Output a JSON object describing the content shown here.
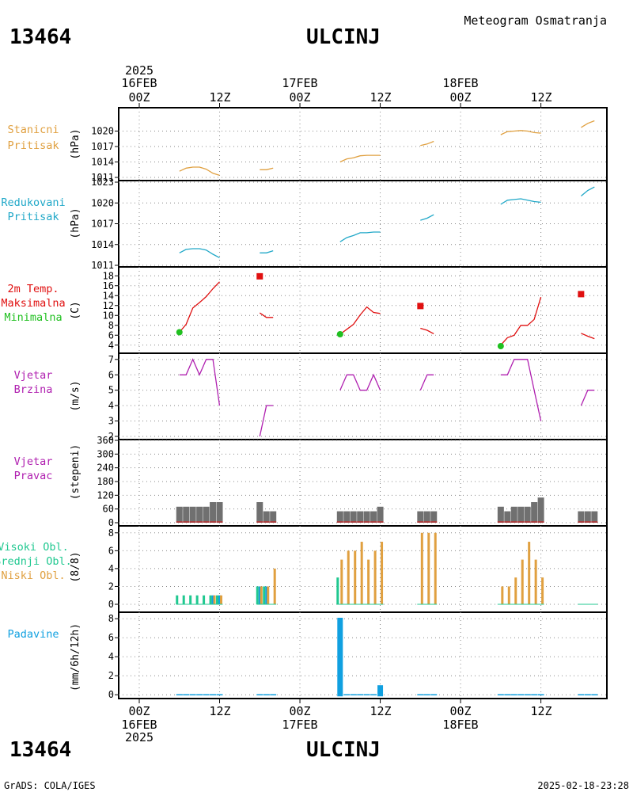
{
  "header": {
    "station_id": "13464",
    "station_name": "ULCINJ",
    "subtitle": "Meteogram Osmatranja"
  },
  "time_axis": {
    "year": "2025",
    "dates": [
      "16FEB",
      "17FEB",
      "18FEB"
    ],
    "hour_labels": [
      "00Z",
      "12Z",
      "00Z",
      "12Z",
      "00Z",
      "12Z"
    ]
  },
  "footer": {
    "left": "GrADS: COLA/IGES",
    "right": "2025-02-18-23:28"
  },
  "colors": {
    "orange": "#e0a040",
    "cyan": "#20a8c8",
    "red": "#e01010",
    "green": "#20c020",
    "magenta": "#b020b0",
    "gray": "#707070",
    "teal": "#20c890",
    "blue": "#10a0e0"
  },
  "chart_data": [
    {
      "type": "line",
      "panel": "stanicni",
      "labels": [
        "Stanicni",
        "Pritisak"
      ],
      "ylabel": "(hPa)",
      "ylim": [
        1011,
        1023
      ],
      "yticks": [
        1011,
        1014,
        1017,
        1020
      ],
      "x_unit": "hours since 2025-02-16 00Z",
      "segments": [
        {
          "x": [
            6,
            7,
            8,
            9,
            10,
            11,
            12
          ],
          "y": [
            1012.2,
            1012.8,
            1013.0,
            1013.0,
            1012.6,
            1011.8,
            1011.4
          ]
        },
        {
          "x": [
            18,
            19,
            20
          ],
          "y": [
            1012.5,
            1012.5,
            1012.8
          ]
        },
        {
          "x": [
            30,
            31,
            32,
            33,
            34,
            35,
            36
          ],
          "y": [
            1014.0,
            1014.6,
            1014.8,
            1015.2,
            1015.3,
            1015.3,
            1015.3
          ]
        },
        {
          "x": [
            42,
            43,
            44
          ],
          "y": [
            1017.2,
            1017.5,
            1018.0
          ]
        },
        {
          "x": [
            54,
            55,
            56,
            57,
            58,
            59,
            60
          ],
          "y": [
            1019.3,
            1019.9,
            1020.0,
            1020.1,
            1020.0,
            1019.7,
            1019.6
          ]
        },
        {
          "x": [
            66,
            67,
            68
          ],
          "y": [
            1020.7,
            1021.5,
            1022.0
          ]
        }
      ]
    },
    {
      "type": "line",
      "panel": "redukovani",
      "labels": [
        "Redukovani",
        "Pritisak"
      ],
      "ylabel": "(hPa)",
      "ylim": [
        1011,
        1023
      ],
      "yticks": [
        1011,
        1014,
        1017,
        1020,
        1023
      ],
      "x_unit": "hours since 2025-02-16 00Z",
      "segments": [
        {
          "x": [
            6,
            7,
            8,
            9,
            10,
            11,
            12
          ],
          "y": [
            1012.8,
            1013.3,
            1013.4,
            1013.4,
            1013.2,
            1012.6,
            1012.1
          ]
        },
        {
          "x": [
            18,
            19,
            20
          ],
          "y": [
            1012.8,
            1012.8,
            1013.1
          ]
        },
        {
          "x": [
            30,
            31,
            32,
            33,
            34,
            35,
            36
          ],
          "y": [
            1014.4,
            1015.0,
            1015.3,
            1015.7,
            1015.7,
            1015.8,
            1015.8
          ]
        },
        {
          "x": [
            42,
            43,
            44
          ],
          "y": [
            1017.5,
            1017.8,
            1018.3
          ]
        },
        {
          "x": [
            54,
            55,
            56,
            57,
            58,
            59,
            60
          ],
          "y": [
            1019.8,
            1020.4,
            1020.5,
            1020.6,
            1020.4,
            1020.2,
            1020.1
          ]
        },
        {
          "x": [
            66,
            67,
            68
          ],
          "y": [
            1021.0,
            1021.8,
            1022.3
          ]
        }
      ]
    },
    {
      "type": "line",
      "panel": "temperatura",
      "labels": [
        "2m Temp.",
        "Maksimalna",
        "Minimalna"
      ],
      "ylabel": "(C)",
      "ylim": [
        3,
        19
      ],
      "yticks": [
        4,
        6,
        8,
        10,
        12,
        14,
        16,
        18
      ],
      "x_unit": "hours since 2025-02-16 00Z",
      "segments": [
        {
          "x": [
            6,
            7,
            8,
            9,
            10,
            11,
            12
          ],
          "y": [
            6.6,
            8.2,
            11.5,
            12.6,
            13.8,
            15.4,
            16.8
          ]
        },
        {
          "x": [
            18,
            19,
            20
          ],
          "y": [
            10.5,
            9.6,
            9.6
          ]
        },
        {
          "x": [
            30,
            31,
            32,
            33,
            34,
            35,
            36
          ],
          "y": [
            6.2,
            7.2,
            8.2,
            10.1,
            11.7,
            10.6,
            10.4
          ]
        },
        {
          "x": [
            42,
            43,
            44
          ],
          "y": [
            7.4,
            7.0,
            6.3
          ]
        },
        {
          "x": [
            54,
            55,
            56,
            57,
            58,
            59,
            60
          ],
          "y": [
            4.0,
            5.5,
            6.0,
            8.0,
            8.0,
            9.2,
            13.7
          ]
        },
        {
          "x": [
            66,
            67,
            68
          ],
          "y": [
            6.4,
            5.8,
            5.3
          ]
        }
      ],
      "maximum": {
        "x": [
          18,
          42,
          66
        ],
        "y": [
          17.9,
          11.9,
          14.3
        ]
      },
      "minimum": {
        "x": [
          6,
          30,
          54
        ],
        "y": [
          6.6,
          6.2,
          3.8
        ]
      }
    },
    {
      "type": "line",
      "panel": "vjetar_brzina",
      "labels": [
        "Vjetar",
        "Brzina"
      ],
      "ylabel": "(m/s)",
      "ylim": [
        2,
        7.3
      ],
      "yticks": [
        2,
        3,
        4,
        5,
        6,
        7
      ],
      "x_unit": "hours since 2025-02-16 00Z",
      "segments": [
        {
          "x": [
            6,
            7,
            8,
            9,
            10,
            11,
            12
          ],
          "y": [
            6,
            6,
            7,
            6,
            7,
            7,
            4
          ]
        },
        {
          "x": [
            18,
            19,
            20
          ],
          "y": [
            2,
            4,
            4
          ]
        },
        {
          "x": [
            30,
            31,
            32,
            33,
            34,
            35,
            36
          ],
          "y": [
            5,
            6,
            6,
            5,
            5,
            6,
            5
          ]
        },
        {
          "x": [
            42,
            43,
            44
          ],
          "y": [
            5,
            6,
            6
          ]
        },
        {
          "x": [
            54,
            55,
            56,
            57,
            58,
            59,
            60
          ],
          "y": [
            6,
            6,
            7,
            7,
            7,
            5,
            3
          ]
        },
        {
          "x": [
            66,
            67,
            68
          ],
          "y": [
            4,
            5,
            5
          ]
        }
      ]
    },
    {
      "type": "bar",
      "panel": "vjetar_pravac",
      "labels": [
        "Vjetar",
        "Pravac"
      ],
      "ylabel": "(stepeni)",
      "ylim": [
        0,
        360
      ],
      "yticks": [
        0,
        60,
        120,
        180,
        240,
        300,
        360
      ],
      "x_unit": "hours since 2025-02-16 00Z",
      "x": [
        6,
        7,
        8,
        9,
        10,
        11,
        12,
        18,
        19,
        20,
        30,
        31,
        32,
        33,
        34,
        35,
        36,
        42,
        43,
        44,
        54,
        55,
        56,
        57,
        58,
        59,
        60,
        66,
        67,
        68
      ],
      "values": [
        70,
        70,
        70,
        70,
        70,
        90,
        90,
        90,
        50,
        50,
        50,
        50,
        50,
        50,
        50,
        50,
        70,
        50,
        50,
        50,
        70,
        50,
        70,
        70,
        70,
        90,
        110,
        50,
        50,
        50
      ]
    },
    {
      "type": "bar",
      "panel": "oblacnost",
      "labels": [
        "Visoki Obl.",
        "Srednji Obl.",
        "Niski Obl."
      ],
      "ylabel": "(8/8)",
      "ylim": [
        0,
        8.6
      ],
      "yticks": [
        0,
        2,
        4,
        6,
        8
      ],
      "x_unit": "hours since 2025-02-16 00Z",
      "series": [
        {
          "name": "Visoki Obl.",
          "x": [
            6,
            7,
            8,
            9,
            10,
            11,
            12,
            18,
            19,
            20,
            30
          ],
          "values": [
            1,
            1,
            1,
            1,
            1,
            1,
            1,
            2,
            2,
            0,
            3
          ]
        },
        {
          "name": "Srednji Obl.",
          "x": [
            11,
            12,
            18,
            19
          ],
          "values": [
            1,
            1,
            2,
            2
          ]
        },
        {
          "name": "Niski Obl.",
          "x": [
            11,
            12,
            18,
            19,
            20,
            30,
            31,
            32,
            33,
            34,
            35,
            36,
            42,
            43,
            44,
            54,
            55,
            56,
            57,
            58,
            59,
            60
          ],
          "values": [
            1,
            1,
            2,
            2,
            4,
            5,
            6,
            6,
            7,
            5,
            6,
            7,
            8,
            8,
            8,
            2,
            2,
            3,
            5,
            7,
            5,
            3
          ]
        }
      ]
    },
    {
      "type": "bar",
      "panel": "padavine",
      "labels": [
        "Padavine"
      ],
      "ylabel": "(mm/6h/12h)",
      "ylim": [
        -0.4,
        8.6
      ],
      "yticks": [
        0,
        2,
        4,
        6,
        8
      ],
      "x_unit": "hours since 2025-02-16 00Z",
      "x": [
        30,
        36
      ],
      "values": [
        8.1,
        1.0
      ],
      "trace": [
        6,
        7,
        8,
        9,
        10,
        11,
        12,
        18,
        19,
        20,
        31,
        32,
        33,
        34,
        35,
        42,
        43,
        44,
        54,
        55,
        56,
        57,
        58,
        59,
        60,
        66,
        67,
        68
      ]
    }
  ]
}
